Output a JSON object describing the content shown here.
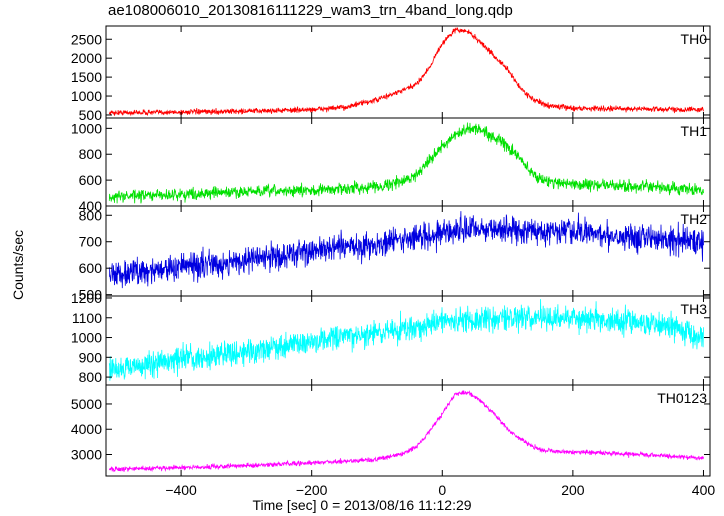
{
  "chart_data": {
    "type": "line",
    "title": "ae108006010_20130816111229_wam3_trn_4band_long.qdp",
    "xlabel": "Time [sec] 0 = 2013/08/16 11:12:29",
    "ylabel": "Counts/sec",
    "xlim": [
      -515,
      410
    ],
    "xticks": [
      -400,
      -200,
      0,
      200,
      400
    ],
    "xtick_labels": [
      "−400",
      "−200",
      "0",
      "200",
      "400"
    ],
    "panels": [
      {
        "name": "TH0",
        "color": "#ff0000",
        "ylim": [
          420,
          2850
        ],
        "yticks": [
          500,
          1000,
          1500,
          2000,
          2500
        ],
        "noise": 35,
        "curve": [
          [
            -510,
            560
          ],
          [
            -400,
            575
          ],
          [
            -300,
            600
          ],
          [
            -200,
            640
          ],
          [
            -150,
            700
          ],
          [
            -100,
            900
          ],
          [
            -60,
            1150
          ],
          [
            -40,
            1300
          ],
          [
            -20,
            1750
          ],
          [
            0,
            2400
          ],
          [
            20,
            2750
          ],
          [
            40,
            2700
          ],
          [
            60,
            2400
          ],
          [
            80,
            2050
          ],
          [
            100,
            1700
          ],
          [
            120,
            1200
          ],
          [
            140,
            900
          ],
          [
            160,
            750
          ],
          [
            200,
            680
          ],
          [
            300,
            660
          ],
          [
            400,
            640
          ]
        ]
      },
      {
        "name": "TH1",
        "color": "#00e000",
        "ylim": [
          400,
          1080
        ],
        "yticks": [
          400,
          600,
          800,
          1000
        ],
        "noise": 22,
        "curve": [
          [
            -510,
            470
          ],
          [
            -400,
            490
          ],
          [
            -300,
            510
          ],
          [
            -200,
            520
          ],
          [
            -100,
            550
          ],
          [
            -60,
            590
          ],
          [
            -40,
            640
          ],
          [
            -20,
            760
          ],
          [
            0,
            860
          ],
          [
            20,
            940
          ],
          [
            40,
            1000
          ],
          [
            60,
            990
          ],
          [
            80,
            930
          ],
          [
            100,
            860
          ],
          [
            120,
            760
          ],
          [
            140,
            640
          ],
          [
            160,
            590
          ],
          [
            200,
            570
          ],
          [
            300,
            550
          ],
          [
            400,
            520
          ]
        ]
      },
      {
        "name": "TH2",
        "color": "#0000e0",
        "ylim": [
          495,
          835
        ],
        "yticks": [
          500,
          600,
          700,
          800
        ],
        "noise": 25,
        "curve": [
          [
            -510,
            575
          ],
          [
            -400,
            605
          ],
          [
            -300,
            630
          ],
          [
            -200,
            665
          ],
          [
            -100,
            690
          ],
          [
            0,
            735
          ],
          [
            50,
            750
          ],
          [
            100,
            745
          ],
          [
            200,
            735
          ],
          [
            300,
            720
          ],
          [
            400,
            700
          ]
        ]
      },
      {
        "name": "TH3",
        "color": "#00ffff",
        "ylim": [
          760,
          1210
        ],
        "yticks": [
          800,
          900,
          1000,
          1100,
          1200
        ],
        "noise": 32,
        "curve": [
          [
            -510,
            840
          ],
          [
            -450,
            860
          ],
          [
            -400,
            890
          ],
          [
            -300,
            930
          ],
          [
            -200,
            980
          ],
          [
            -100,
            1020
          ],
          [
            0,
            1080
          ],
          [
            100,
            1100
          ],
          [
            200,
            1100
          ],
          [
            300,
            1080
          ],
          [
            350,
            1060
          ],
          [
            400,
            1000
          ]
        ]
      },
      {
        "name": "TH0123",
        "color": "#ff00ff",
        "ylim": [
          2150,
          5750
        ],
        "yticks": [
          3000,
          4000,
          5000
        ],
        "noise": 45,
        "curve": [
          [
            -510,
            2420
          ],
          [
            -400,
            2480
          ],
          [
            -300,
            2560
          ],
          [
            -200,
            2670
          ],
          [
            -100,
            2800
          ],
          [
            -60,
            3050
          ],
          [
            -40,
            3300
          ],
          [
            -20,
            3900
          ],
          [
            0,
            4600
          ],
          [
            20,
            5400
          ],
          [
            40,
            5450
          ],
          [
            60,
            5100
          ],
          [
            80,
            4600
          ],
          [
            100,
            4000
          ],
          [
            120,
            3600
          ],
          [
            140,
            3300
          ],
          [
            160,
            3150
          ],
          [
            200,
            3100
          ],
          [
            300,
            3000
          ],
          [
            400,
            2870
          ]
        ]
      }
    ]
  }
}
